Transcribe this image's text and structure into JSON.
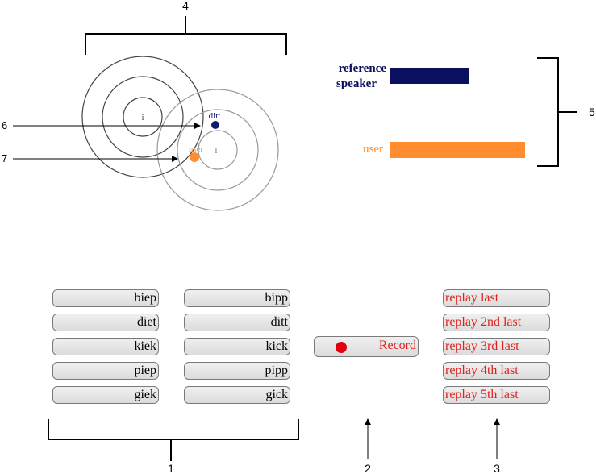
{
  "word_columns": [
    [
      "biep",
      "diet",
      "kiek",
      "piep",
      "giek"
    ],
    [
      "bipp",
      "ditt",
      "kick",
      "pipp",
      "gick"
    ]
  ],
  "record": {
    "label": "Record",
    "dot_color": "#e00010"
  },
  "replay_buttons": [
    "replay last",
    "replay 2nd last",
    "replay 3rd last",
    "replay 4th last",
    "replay 5th last"
  ],
  "vowel_plot": {
    "reference_vowel": "i",
    "target_vowel": "I",
    "target_label": "ditt",
    "user_label": "user",
    "target_color": "#0f1c6e",
    "user_color": "#ff8c2e"
  },
  "bars": {
    "reference_label_line1": "reference",
    "reference_label_line2": "speaker",
    "user_label": "user",
    "reference_color": "#0a0f5e",
    "user_color": "#ff8c2e",
    "reference_value": 0.58,
    "user_value": 1.0
  },
  "callouts": [
    "1",
    "2",
    "3",
    "4",
    "5",
    "6",
    "7"
  ],
  "accent_red": "#e0201c"
}
